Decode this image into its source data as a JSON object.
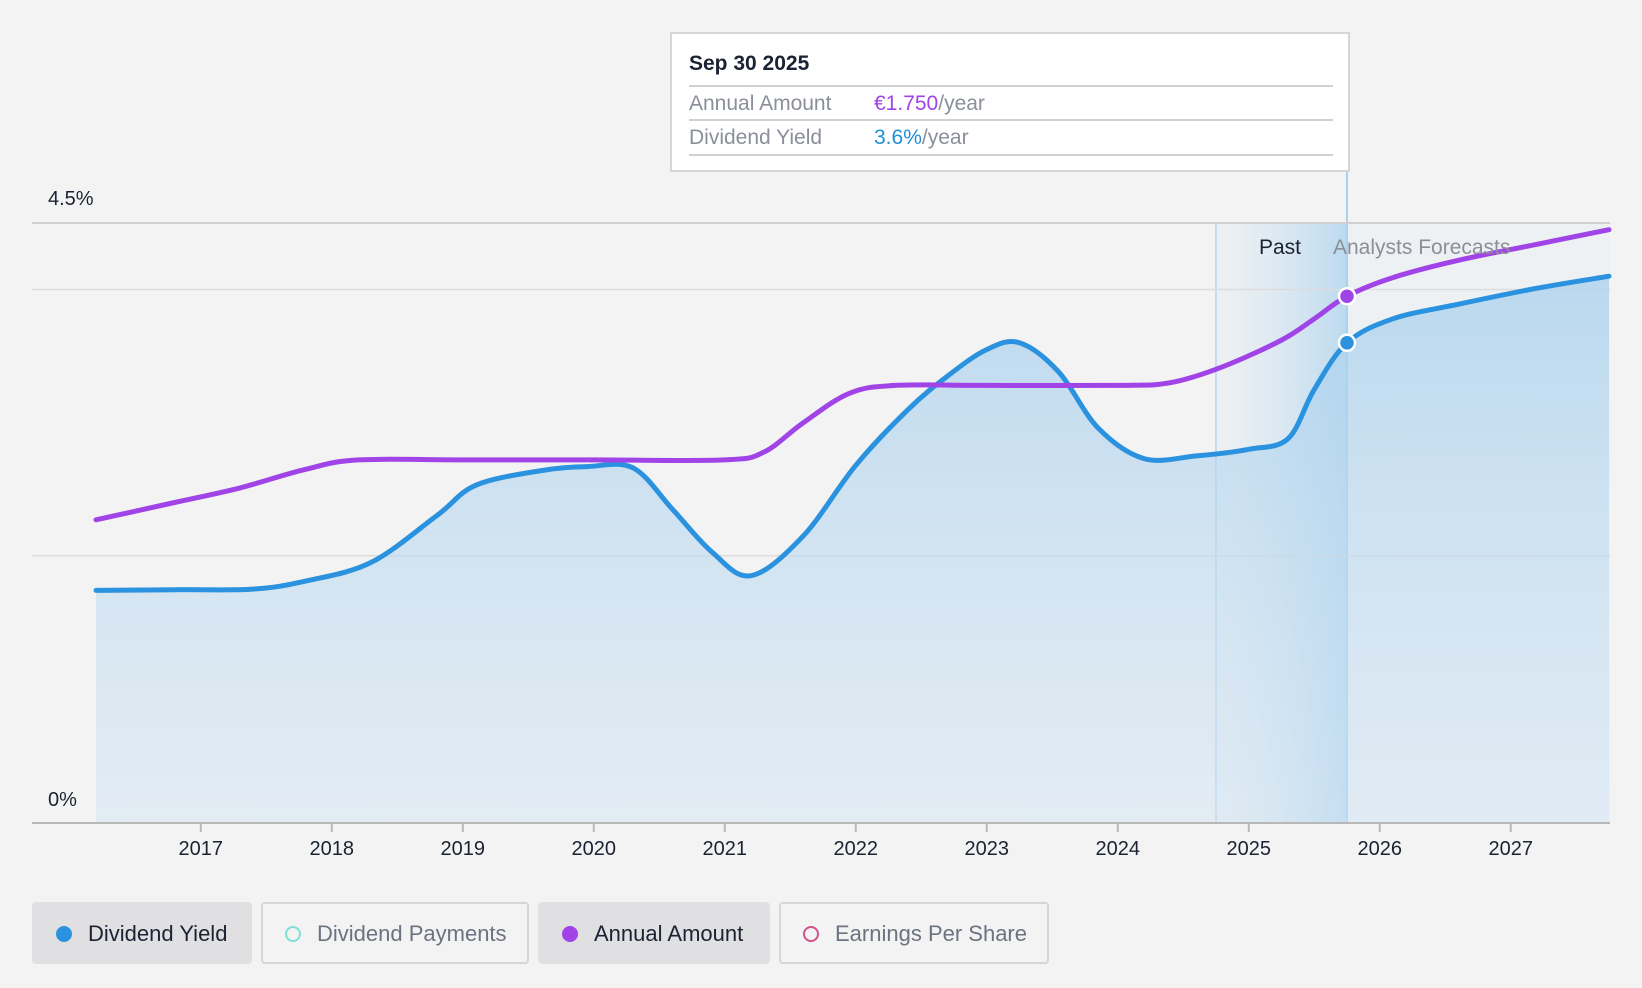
{
  "chart_data": {
    "type": "area",
    "y_axis": {
      "top_label": "4.5%",
      "bottom_label": "0%",
      "ylim": [
        0,
        4.5
      ],
      "gridlines": [
        2.0,
        4.0
      ]
    },
    "x_axis": {
      "ticks": [
        "2017",
        "2018",
        "2019",
        "2020",
        "2021",
        "2022",
        "2023",
        "2024",
        "2025",
        "2026",
        "2027"
      ],
      "xlim": [
        2016.2,
        2027.75
      ]
    },
    "zones": {
      "past_label": "Past",
      "forecast_label": "Analysts Forecasts",
      "divider_x": 2025.75,
      "past_band_start": 2024.75
    },
    "series": [
      {
        "name": "Dividend Yield",
        "color": "#2a92de",
        "fill": true,
        "points": [
          [
            2016.2,
            1.74
          ],
          [
            2016.8,
            1.745
          ],
          [
            2017.4,
            1.75
          ],
          [
            2017.8,
            1.81
          ],
          [
            2018.3,
            1.95
          ],
          [
            2018.8,
            2.3
          ],
          [
            2019.1,
            2.53
          ],
          [
            2019.6,
            2.64
          ],
          [
            2019.95,
            2.67
          ],
          [
            2020.3,
            2.66
          ],
          [
            2020.6,
            2.35
          ],
          [
            2020.9,
            2.03
          ],
          [
            2021.2,
            1.85
          ],
          [
            2021.6,
            2.15
          ],
          [
            2022.0,
            2.68
          ],
          [
            2022.4,
            3.1
          ],
          [
            2022.7,
            3.35
          ],
          [
            2023.0,
            3.55
          ],
          [
            2023.25,
            3.6
          ],
          [
            2023.55,
            3.38
          ],
          [
            2023.85,
            2.96
          ],
          [
            2024.2,
            2.73
          ],
          [
            2024.6,
            2.75
          ],
          [
            2025.0,
            2.8
          ],
          [
            2025.3,
            2.88
          ],
          [
            2025.5,
            3.25
          ],
          [
            2025.75,
            3.6
          ],
          [
            2026.1,
            3.78
          ],
          [
            2026.6,
            3.89
          ],
          [
            2027.2,
            4.01
          ],
          [
            2027.75,
            4.1
          ]
        ]
      },
      {
        "name": "Annual Amount",
        "color": "#a044e8",
        "fill": false,
        "points": [
          [
            2016.2,
            2.27
          ],
          [
            2016.8,
            2.4
          ],
          [
            2017.3,
            2.51
          ],
          [
            2017.8,
            2.65
          ],
          [
            2018.2,
            2.72
          ],
          [
            2019.0,
            2.72
          ],
          [
            2020.0,
            2.72
          ],
          [
            2021.0,
            2.72
          ],
          [
            2021.3,
            2.78
          ],
          [
            2021.6,
            3.0
          ],
          [
            2021.95,
            3.22
          ],
          [
            2022.3,
            3.28
          ],
          [
            2023.0,
            3.28
          ],
          [
            2024.0,
            3.28
          ],
          [
            2024.4,
            3.3
          ],
          [
            2024.8,
            3.42
          ],
          [
            2025.25,
            3.62
          ],
          [
            2025.5,
            3.78
          ],
          [
            2025.75,
            3.95
          ],
          [
            2026.1,
            4.09
          ],
          [
            2026.6,
            4.22
          ],
          [
            2027.2,
            4.34
          ],
          [
            2027.75,
            4.45
          ]
        ]
      }
    ],
    "markers": [
      {
        "series": "Annual Amount",
        "x": 2025.75,
        "y": 3.95
      },
      {
        "series": "Dividend Yield",
        "x": 2025.75,
        "y": 3.6
      }
    ]
  },
  "tooltip": {
    "date": "Sep 30 2025",
    "rows": [
      {
        "label": "Annual Amount",
        "value": "€1.750",
        "unit": "/year",
        "color": "#a044e8"
      },
      {
        "label": "Dividend Yield",
        "value": "3.6%",
        "unit": "/year",
        "color": "#1f8fd6"
      }
    ]
  },
  "legend": [
    {
      "label": "Dividend Yield",
      "active": true,
      "color": "#2a92de",
      "filled": true
    },
    {
      "label": "Dividend Payments",
      "active": false,
      "color": "#7fe0d8",
      "filled": false
    },
    {
      "label": "Annual Amount",
      "active": true,
      "color": "#a044e8",
      "filled": true
    },
    {
      "label": "Earnings Per Share",
      "active": false,
      "color": "#d0528a",
      "filled": false
    }
  ]
}
